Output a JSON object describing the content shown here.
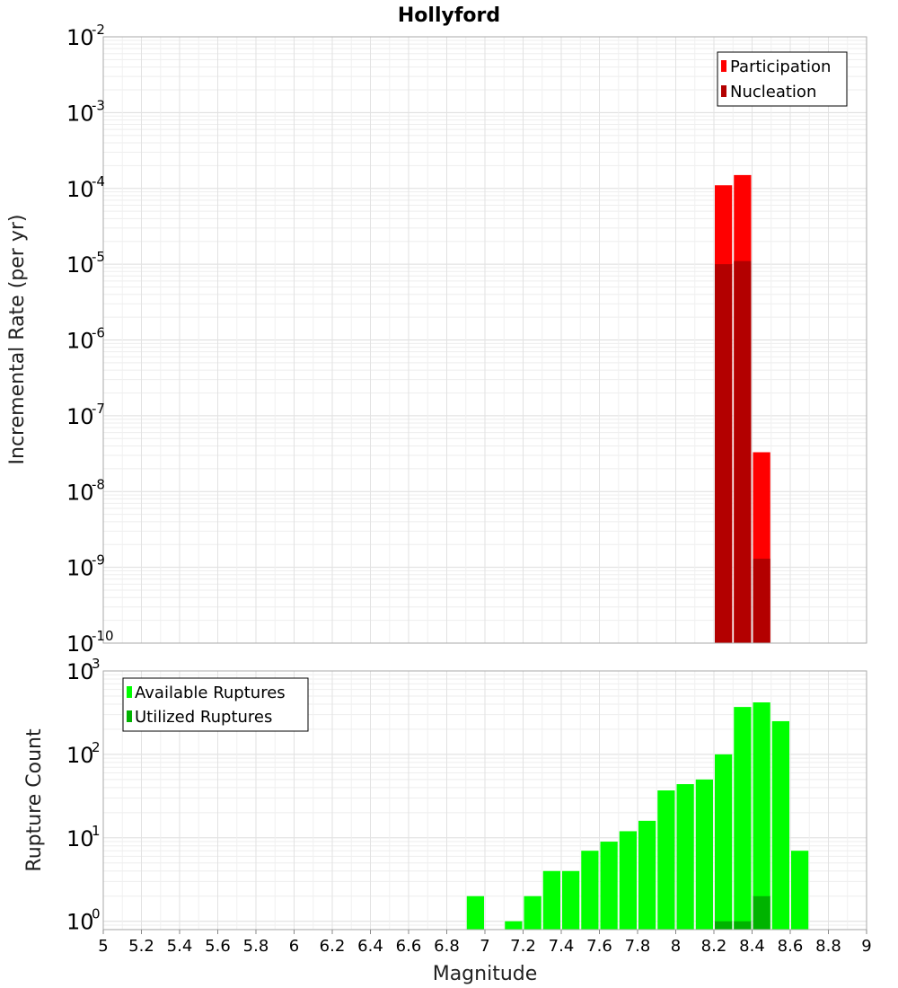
{
  "chart_data": {
    "type": "bar",
    "title": "Hollyford",
    "xlabel": "Magnitude",
    "x_ticks": [
      "5",
      "5.2",
      "5.4",
      "5.6",
      "5.8",
      "6",
      "6.2",
      "6.4",
      "6.6",
      "6.8",
      "7",
      "7.2",
      "7.4",
      "7.6",
      "7.8",
      "8",
      "8.2",
      "8.4",
      "8.6",
      "8.8",
      "9"
    ],
    "xlim": [
      5,
      9
    ],
    "bin_width": 0.1,
    "grid": true,
    "panels": [
      {
        "name": "rates",
        "ylabel": "Incremental Rate (per yr)",
        "yscale": "log",
        "ylim_exp": [
          -10,
          -2
        ],
        "y_tick_exps": [
          "-10",
          "-9",
          "-8",
          "-7",
          "-6",
          "-5",
          "-4",
          "-3",
          "-2"
        ],
        "legend_position": "top-right",
        "series": [
          {
            "name": "Participation",
            "color": "#ff0000",
            "points": [
              {
                "x": 8.25,
                "y": 0.00011
              },
              {
                "x": 8.35,
                "y": 0.00015
              },
              {
                "x": 8.45,
                "y": 3.3e-08
              }
            ]
          },
          {
            "name": "Nucleation",
            "color": "#b30000",
            "points": [
              {
                "x": 8.25,
                "y": 1e-05
              },
              {
                "x": 8.35,
                "y": 1.1e-05
              },
              {
                "x": 8.45,
                "y": 1.3e-09
              }
            ]
          }
        ]
      },
      {
        "name": "counts",
        "ylabel": "Rupture Count",
        "yscale": "log",
        "ylim_exp": [
          -0.1,
          3
        ],
        "y_tick_exps": [
          "0",
          "1",
          "2",
          "3"
        ],
        "legend_position": "top-left",
        "series": [
          {
            "name": "Available Ruptures",
            "color": "#00ff00",
            "points": [
              {
                "x": 6.95,
                "y": 2
              },
              {
                "x": 7.15,
                "y": 1
              },
              {
                "x": 7.25,
                "y": 2
              },
              {
                "x": 7.35,
                "y": 4
              },
              {
                "x": 7.45,
                "y": 4
              },
              {
                "x": 7.55,
                "y": 7
              },
              {
                "x": 7.65,
                "y": 9
              },
              {
                "x": 7.75,
                "y": 12
              },
              {
                "x": 7.85,
                "y": 16
              },
              {
                "x": 7.95,
                "y": 37
              },
              {
                "x": 8.05,
                "y": 44
              },
              {
                "x": 8.15,
                "y": 50
              },
              {
                "x": 8.25,
                "y": 100
              },
              {
                "x": 8.35,
                "y": 370
              },
              {
                "x": 8.45,
                "y": 420
              },
              {
                "x": 8.55,
                "y": 250
              },
              {
                "x": 8.65,
                "y": 7
              }
            ]
          },
          {
            "name": "Utilized Ruptures",
            "color": "#00b300",
            "points": [
              {
                "x": 8.25,
                "y": 1
              },
              {
                "x": 8.35,
                "y": 1
              },
              {
                "x": 8.45,
                "y": 2
              }
            ]
          }
        ]
      }
    ]
  }
}
